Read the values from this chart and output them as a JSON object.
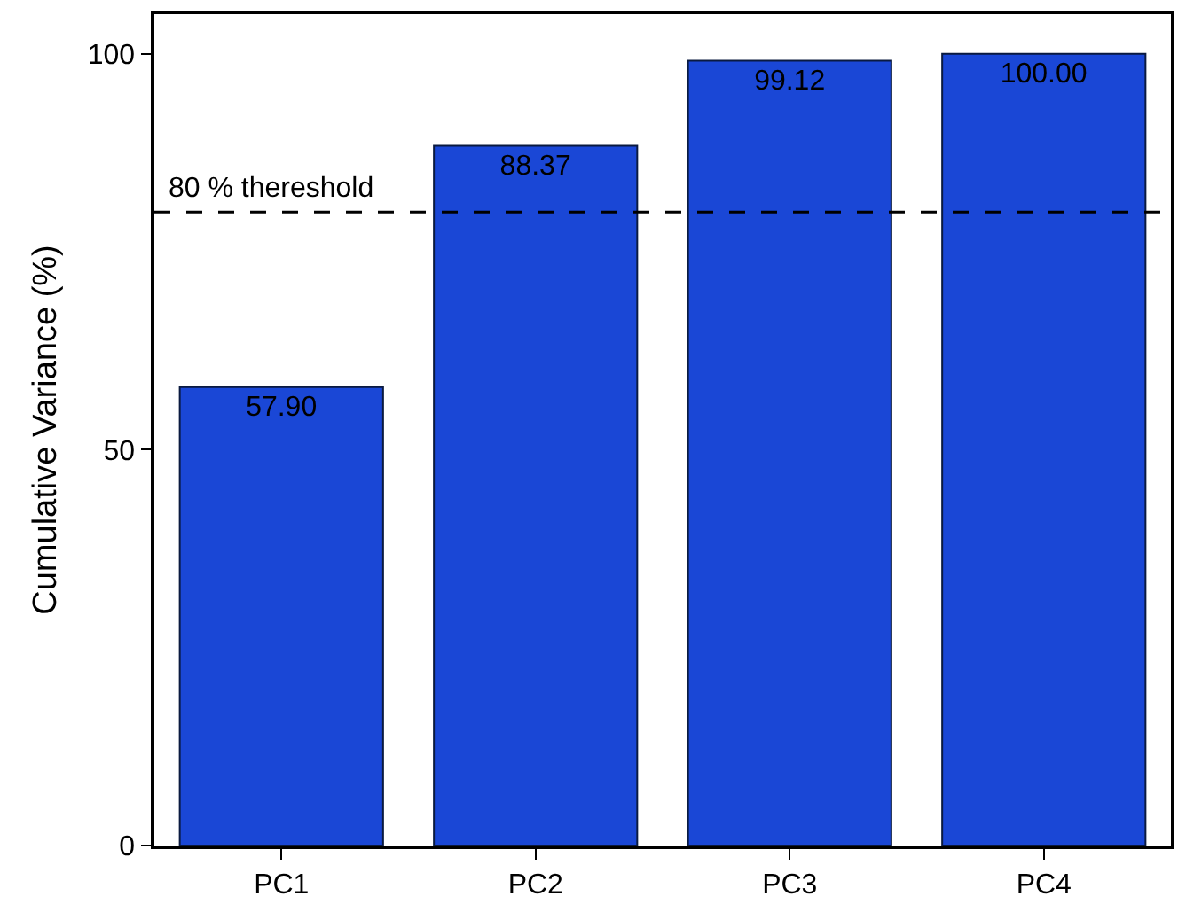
{
  "chart_data": {
    "type": "bar",
    "ylabel": "Cumulative Variance (%)",
    "categories": [
      "PC1",
      "PC2",
      "PC3",
      "PC4"
    ],
    "values": [
      57.9,
      88.37,
      99.12,
      100.0
    ],
    "value_labels": [
      "57.90",
      "88.37",
      "99.12",
      "100.00"
    ],
    "color": "#1a47d6",
    "ylim": [
      0,
      105
    ],
    "yticks": [
      0,
      50,
      100
    ],
    "grid": false,
    "ref_lines": [
      {
        "axis": "y",
        "value": 80,
        "label": "80 % thereshold",
        "color": "#000000",
        "line_style": "dashed"
      }
    ]
  }
}
